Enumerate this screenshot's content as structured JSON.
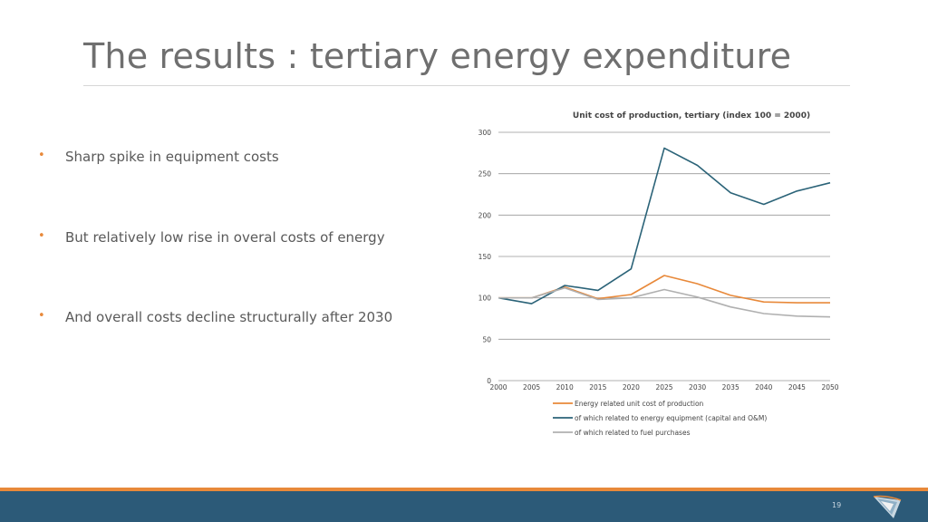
{
  "slide": {
    "title": "The results : tertiary energy expenditure",
    "page_number": "19",
    "bullets": [
      {
        "marker": "•",
        "text": "Sharp spike in equipment costs"
      },
      {
        "marker": "•",
        "text": "But relatively low rise in overal costs of energy"
      },
      {
        "marker": "•",
        "text": "And overall costs decline structurally after 2030"
      }
    ],
    "logo_icon": "company-logo-icon"
  },
  "colors": {
    "accent_orange": "#e8893a",
    "footer_blue": "#2c5a78",
    "series_orange": "#e8893a",
    "series_teal": "#2b6378",
    "series_grey": "#b0b0b0"
  },
  "chart_data": {
    "type": "line",
    "title": "Unit cost of production, tertiary (index 100 = 2000)",
    "xlabel": "",
    "ylabel": "",
    "x": [
      2000,
      2005,
      2010,
      2015,
      2020,
      2025,
      2030,
      2035,
      2040,
      2045,
      2050
    ],
    "x_tick_labels": [
      "2000",
      "2005",
      "2010",
      "2015",
      "2020",
      "2025",
      "2030",
      "2035",
      "2040",
      "2045",
      "2050"
    ],
    "y_ticks": [
      0,
      50,
      100,
      150,
      200,
      250,
      300
    ],
    "y_tick_labels": [
      "0",
      "50",
      "100",
      "150",
      "200",
      "250",
      "300"
    ],
    "ylim": [
      0,
      300
    ],
    "grid": true,
    "legend_position": "bottom",
    "series": [
      {
        "name": "Energy related unit cost of production",
        "color": "#e8893a",
        "values": [
          100,
          100,
          113,
          99,
          104,
          127,
          117,
          103,
          95,
          94,
          94
        ]
      },
      {
        "name": "of which related to energy equipment (capital and O&M)",
        "color": "#2b6378",
        "values": [
          100,
          93,
          115,
          109,
          135,
          281,
          260,
          227,
          213,
          229,
          239
        ]
      },
      {
        "name": "of which related to fuel purchases",
        "color": "#b0b0b0",
        "values": [
          100,
          100,
          112,
          98,
          100,
          110,
          101,
          89,
          81,
          78,
          77
        ]
      }
    ]
  }
}
